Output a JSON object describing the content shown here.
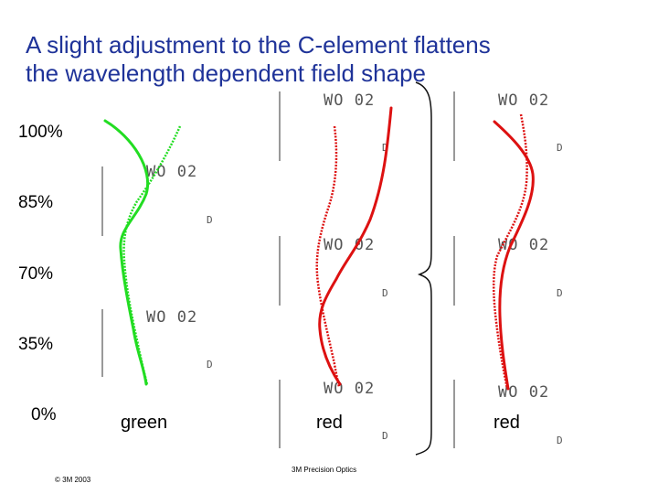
{
  "title_line1": "A slight adjustment to the C-element flattens",
  "title_line2": "the wavelength dependent field shape",
  "field_levels": [
    "100%",
    "85%",
    "70%",
    "35%",
    "0%"
  ],
  "columns": [
    {
      "label": "green",
      "color": "#22dd22"
    },
    {
      "label": "red",
      "color": "#dd1111"
    },
    {
      "label": "red",
      "color": "#dd1111"
    }
  ],
  "plate_text": "WO 02",
  "plate_mark": "D",
  "footer_center": "3M Precision Optics",
  "footer_left": "© 3M 2003"
}
